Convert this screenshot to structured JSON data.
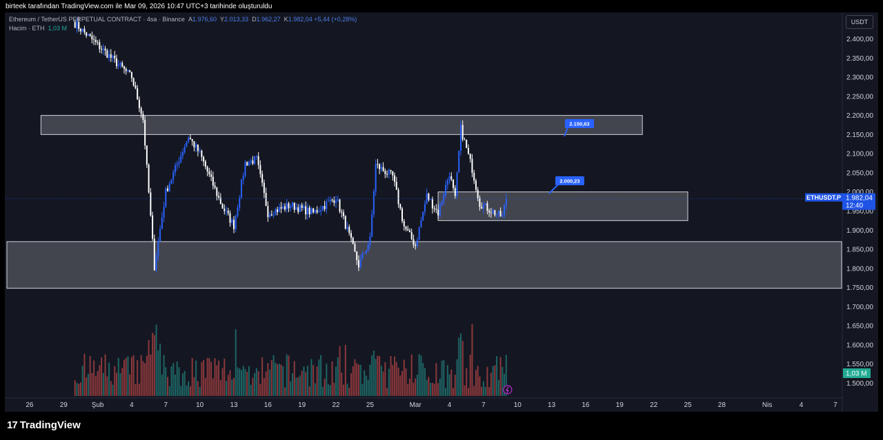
{
  "header": {
    "caption": "birteek tarafından TradingView.com ile Mar 09, 2026 10:47 UTC+3 tarihinde oluşturuldu"
  },
  "legend": {
    "symbol": "Ethereum / TetherUS PERPETUAL CONTRACT · 4sa · Binance",
    "o_label": "A",
    "o": "1.976,60",
    "h_label": "Y",
    "h": "2.013,33",
    "l_label": "D",
    "l": "1.962,27",
    "c_label": "K",
    "c": "1.982,04",
    "change": "+5,44 (+0,28%)",
    "volume_label": "Hacim · ETH",
    "volume": "1,03 M"
  },
  "currency_button": "USDT",
  "footer": {
    "brand": "TradingView",
    "logo_icon": "tradingview-logo-icon"
  },
  "colors": {
    "background": "#141722",
    "up_candle": "#2962ff",
    "down_candle": "#ffffff",
    "volume_up": "#26a69a",
    "volume_down": "#ef5350",
    "zone_fill": "#ffffff",
    "label_blue": "#2962ff",
    "price_tag": "#1e53e5",
    "volume_tag": "#22ab94"
  },
  "chart_data": {
    "type": "candlestick",
    "symbol": "ETHUSDT.P",
    "interval": "4sa",
    "exchange": "Binance",
    "y_axis": {
      "side": "right",
      "range": [
        1475,
        2460
      ],
      "ticks": [
        2400,
        2350,
        2300,
        2250,
        2200,
        2150,
        2100,
        2050,
        2000,
        1950,
        1900,
        1850,
        1800,
        1750,
        1700,
        1650,
        1600,
        1550,
        1500
      ],
      "tick_labels": [
        "2.400,00",
        "2.350,00",
        "2.300,00",
        "2.250,00",
        "2.200,00",
        "2.150,00",
        "2.100,00",
        "2.050,00",
        "2.000,00",
        "1.950,00",
        "1.900,00",
        "1.850,00",
        "1.800,00",
        "1.750,00",
        "1.700,00",
        "1.650,00",
        "1.600,00",
        "1.550,00",
        "1.500,00"
      ]
    },
    "x_axis": {
      "tick_labels": [
        "26",
        "29",
        "Şub",
        "4",
        "7",
        "10",
        "13",
        "16",
        "19",
        "22",
        "25",
        "Mar",
        "4",
        "7",
        "10",
        "13",
        "16",
        "19",
        "22",
        "25",
        "28",
        "Nis",
        "4",
        "7"
      ]
    },
    "last_price": {
      "symbol": "ETHUSDT.P",
      "value": 1982.04,
      "label": "1.982,04",
      "countdown": "12:40"
    },
    "last_volume_label": "1,03 M",
    "zones": [
      {
        "name": "upper-resistance",
        "top": 2200,
        "bottom": 2150,
        "from_date": "2026-01-27",
        "to_date": "2026-03-21"
      },
      {
        "name": "current-range",
        "top": 2000,
        "bottom": 1925,
        "from_date": "2026-03-03",
        "to_date": "2026-03-25"
      },
      {
        "name": "lower-support",
        "top": 1870,
        "bottom": 1748,
        "from_date": "2026-01-24",
        "to_date": "2026-04-09"
      }
    ],
    "callouts": [
      {
        "name": "resistance-callout",
        "text": "2.150,63",
        "price": 2150.63
      },
      {
        "name": "range-callout",
        "text": "2.000,23",
        "price": 2000.23
      }
    ],
    "anchors": [
      {
        "date": "2026-01-30",
        "price": 2440
      },
      {
        "date": "2026-02-04",
        "price": 2300
      },
      {
        "date": "2026-02-05",
        "price": 2190
      },
      {
        "date": "2026-02-06",
        "price": 1805
      },
      {
        "date": "2026-02-07",
        "price": 2000
      },
      {
        "date": "2026-02-09",
        "price": 2145
      },
      {
        "date": "2026-02-10",
        "price": 2100
      },
      {
        "date": "2026-02-12",
        "price": 1960
      },
      {
        "date": "2026-02-13",
        "price": 1912
      },
      {
        "date": "2026-02-14",
        "price": 2075
      },
      {
        "date": "2026-02-15",
        "price": 2085
      },
      {
        "date": "2026-02-16",
        "price": 1945
      },
      {
        "date": "2026-02-18",
        "price": 1965
      },
      {
        "date": "2026-02-20",
        "price": 1945
      },
      {
        "date": "2026-02-22",
        "price": 1985
      },
      {
        "date": "2026-02-23",
        "price": 1900
      },
      {
        "date": "2026-02-24",
        "price": 1808
      },
      {
        "date": "2026-02-25",
        "price": 1875
      },
      {
        "date": "2026-02-25T12:00",
        "price": 2070
      },
      {
        "date": "2026-02-27",
        "price": 2040
      },
      {
        "date": "2026-02-28",
        "price": 1910
      },
      {
        "date": "2026-03-01",
        "price": 1860
      },
      {
        "date": "2026-03-02",
        "price": 1990
      },
      {
        "date": "2026-03-03",
        "price": 1945
      },
      {
        "date": "2026-03-04",
        "price": 2050
      },
      {
        "date": "2026-03-04T12:00",
        "price": 1980
      },
      {
        "date": "2026-03-05",
        "price": 2165
      },
      {
        "date": "2026-03-06",
        "price": 2060
      },
      {
        "date": "2026-03-06T16:00",
        "price": 1970
      },
      {
        "date": "2026-03-08",
        "price": 1945
      },
      {
        "date": "2026-03-08T16:00",
        "price": 1935
      },
      {
        "date": "2026-03-09",
        "price": 1982
      }
    ],
    "volume_max_eth": 2.5
  }
}
